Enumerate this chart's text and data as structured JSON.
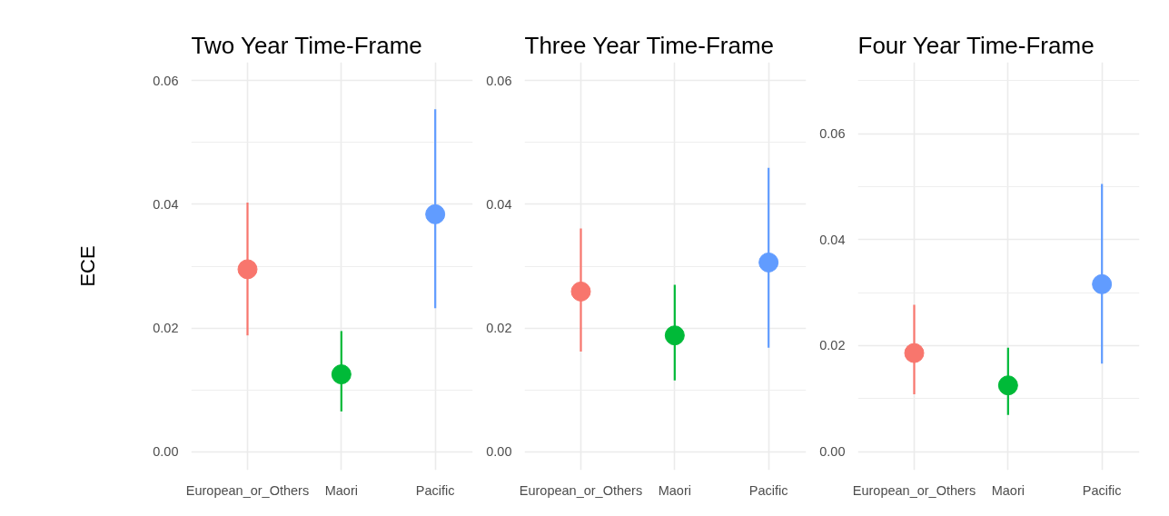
{
  "chart_data": [
    {
      "type": "scatter",
      "title": "Two Year Time-Frame",
      "ylabel": "ECE",
      "categories": [
        "European_or_Others",
        "Maori",
        "Pacific"
      ],
      "values": [
        0.0295,
        0.0125,
        0.0384
      ],
      "colors": [
        "#f8766d",
        "#00ba38",
        "#619cff"
      ],
      "errors": [
        [
          0.0188,
          0.0403
        ],
        [
          0.0065,
          0.0195
        ],
        [
          0.0232,
          0.0554
        ]
      ],
      "ylim": [
        -0.003,
        0.063
      ],
      "yticks": [
        {
          "value": 0,
          "label": "0.00"
        },
        {
          "value": 0.01,
          "label": null
        },
        0.02,
        {
          "value": 0.03,
          "label": null
        },
        0.04,
        {
          "value": 0.05,
          "label": null
        },
        0.06
      ],
      "grid": true,
      "marker": "circle"
    },
    {
      "type": "scatter",
      "title": "Three Year Time-Frame",
      "categories": [
        "European_or_Others",
        "Maori",
        "Pacific"
      ],
      "values": [
        0.0259,
        0.0188,
        0.0306
      ],
      "colors": [
        "#f8766d",
        "#00ba38",
        "#619cff"
      ],
      "errors": [
        [
          0.0162,
          0.0361
        ],
        [
          0.0115,
          0.027
        ],
        [
          0.0168,
          0.0459
        ]
      ],
      "ylim": [
        -0.003,
        0.063
      ],
      "yticks": [
        {
          "value": 0,
          "label": "0.00"
        },
        {
          "value": 0.01,
          "label": null
        },
        0.02,
        {
          "value": 0.03,
          "label": null
        },
        0.04,
        {
          "value": 0.05,
          "label": null
        },
        0.06
      ],
      "grid": true,
      "marker": "circle"
    },
    {
      "type": "scatter",
      "title": "Four Year Time-Frame",
      "categories": [
        "European_or_Others",
        "Maori",
        "Pacific"
      ],
      "values": [
        0.0186,
        0.0125,
        0.0316
      ],
      "colors": [
        "#f8766d",
        "#00ba38",
        "#619cff"
      ],
      "errors": [
        [
          0.0108,
          0.0277
        ],
        [
          0.0069,
          0.0196
        ],
        [
          0.0166,
          0.0505
        ]
      ],
      "ylim": [
        -0.0035,
        0.0735
      ],
      "yticks": [
        {
          "value": 0,
          "label": "0.00"
        },
        {
          "value": 0.01,
          "label": null
        },
        0.02,
        {
          "value": 0.03,
          "label": null
        },
        0.04,
        {
          "value": 0.05,
          "label": null
        },
        0.06,
        {
          "value": 0.07,
          "label": null
        }
      ],
      "grid": true,
      "marker": "circle"
    }
  ]
}
